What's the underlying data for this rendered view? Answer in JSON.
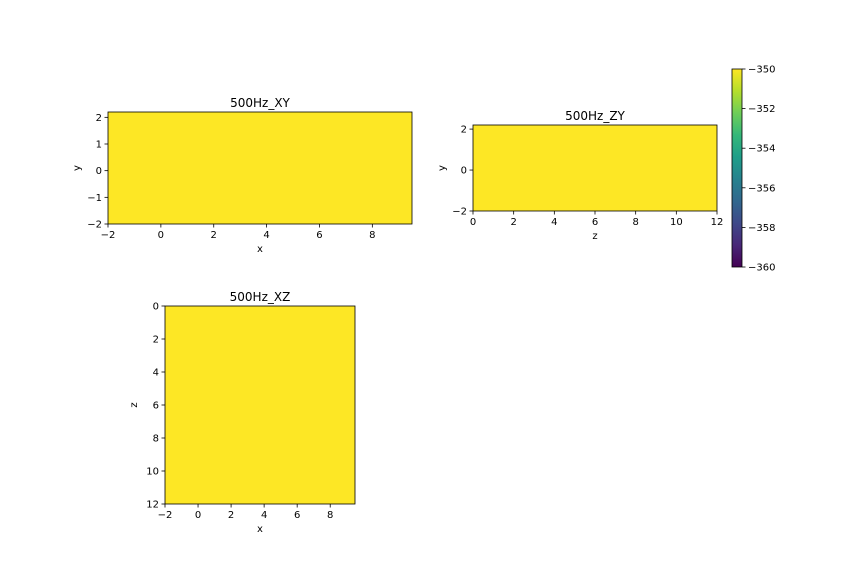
{
  "chart_data": [
    {
      "type": "heatmap",
      "title": "500Hz_XY",
      "xlabel": "x",
      "ylabel": "y",
      "xlim": [
        -2,
        9.5
      ],
      "ylim": [
        -2,
        2.2
      ],
      "xticks": [
        -2,
        0,
        2,
        4,
        6,
        8
      ],
      "yticks": [
        -2,
        -1,
        0,
        1,
        2
      ],
      "y_inverted": false,
      "value": -350,
      "fill_color": "#fde725"
    },
    {
      "type": "heatmap",
      "title": "500Hz_ZY",
      "xlabel": "z",
      "ylabel": "y",
      "xlim": [
        0,
        12
      ],
      "ylim": [
        -2,
        2.2
      ],
      "xticks": [
        0,
        2,
        4,
        6,
        8,
        10,
        12
      ],
      "yticks": [
        -2,
        0,
        2
      ],
      "y_inverted": false,
      "value": -350,
      "fill_color": "#fde725"
    },
    {
      "type": "heatmap",
      "title": "500Hz_XZ",
      "xlabel": "x",
      "ylabel": "z",
      "xlim": [
        -2,
        9.5
      ],
      "ylim": [
        0,
        12
      ],
      "xticks": [
        -2,
        0,
        2,
        4,
        6,
        8
      ],
      "yticks": [
        0,
        2,
        4,
        6,
        8,
        10,
        12
      ],
      "y_inverted": true,
      "value": -350,
      "fill_color": "#fde725"
    }
  ],
  "colorbar": {
    "colormap": "viridis",
    "range": [
      -360,
      -350
    ],
    "ticks": [
      -360,
      -358,
      -356,
      -354,
      -352,
      -350
    ],
    "colors": [
      "#440154",
      "#482878",
      "#3e4989",
      "#31688e",
      "#26828e",
      "#1f9e89",
      "#35b779",
      "#6ece58",
      "#b5de2b",
      "#fde725"
    ]
  }
}
